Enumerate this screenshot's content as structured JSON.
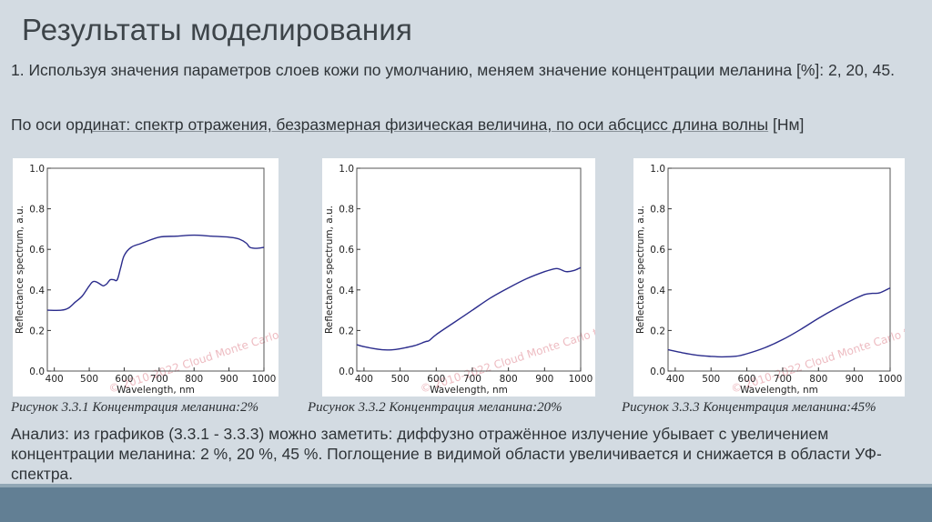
{
  "slide": {
    "title": "Результаты моделирования",
    "paragraph1": "1. Используя значения параметров слоев кожи по умолчанию, меняем значение концентрации меланина [%]: 2, 20, 45.",
    "paragraph2_prefix": "По оси орд",
    "paragraph2_underlined": "инат: спектр отражения, безразмерная физическая величина, по оси абсцисс длина волны",
    "paragraph2_suffix": " [Нм]",
    "analysis": "Анализ: из графиков (3.3.1 - 3.3.3) можно заметить: диффузно отражённое излучение убывает с увеличением концентрации меланина: 2 %, 20 %, 45 %. Поглощение в видимой области увеличивается и снижается в области УФ-спектра.",
    "captions": [
      "Рисунок 3.3.1 Концентрация меланина:2%",
      "Рисунок 3.3.2 Концентрация меланина:20%",
      "Рисунок 3.3.3 Концентрация меланина:45%"
    ],
    "watermark": "© 2010-2022 Cloud Monte Carlo tool",
    "colors": {
      "background": "#d3dbe2",
      "footer_bar": "#627f94",
      "footer_strip": "#91a7b5",
      "line": "#2b2c8c",
      "watermark": "#e8a5ad"
    }
  },
  "chart_data": [
    {
      "type": "line",
      "title": "Рисунок 3.3.1 Концентрация меланина:2%",
      "xlabel": "Wavelength, nm",
      "ylabel": "Reflectance spectrum, a.u.",
      "xlim": [
        380,
        1000
      ],
      "ylim": [
        0.0,
        1.0
      ],
      "xticks": [
        "400",
        "500",
        "600",
        "700",
        "800",
        "900",
        "1000"
      ],
      "yticks": [
        "0.0",
        "0.2",
        "0.4",
        "0.6",
        "0.8",
        "1.0"
      ],
      "grid": false,
      "series": [
        {
          "name": "melanin 2%",
          "x": [
            380,
            420,
            440,
            460,
            480,
            500,
            510,
            520,
            530,
            540,
            550,
            560,
            570,
            580,
            590,
            600,
            620,
            650,
            700,
            750,
            800,
            850,
            900,
            930,
            950,
            960,
            980,
            1000
          ],
          "values": [
            0.3,
            0.3,
            0.31,
            0.34,
            0.37,
            0.42,
            0.44,
            0.44,
            0.43,
            0.42,
            0.43,
            0.45,
            0.45,
            0.45,
            0.51,
            0.57,
            0.61,
            0.63,
            0.66,
            0.665,
            0.67,
            0.665,
            0.66,
            0.65,
            0.63,
            0.61,
            0.605,
            0.61
          ]
        }
      ]
    },
    {
      "type": "line",
      "title": "Рисунок 3.3.2 Концентрация меланина:20%",
      "xlabel": "Wavelength, nm",
      "ylabel": "Reflectance spectrum, a.u.",
      "xlim": [
        380,
        1000
      ],
      "ylim": [
        0.0,
        1.0
      ],
      "xticks": [
        "400",
        "500",
        "600",
        "700",
        "800",
        "900",
        "1000"
      ],
      "yticks": [
        "0.0",
        "0.2",
        "0.4",
        "0.6",
        "0.8",
        "1.0"
      ],
      "grid": false,
      "series": [
        {
          "name": "melanin 20%",
          "x": [
            380,
            400,
            450,
            480,
            500,
            540,
            570,
            580,
            600,
            650,
            700,
            750,
            800,
            850,
            900,
            930,
            945,
            960,
            980,
            1000
          ],
          "values": [
            0.13,
            0.12,
            0.105,
            0.105,
            0.11,
            0.125,
            0.145,
            0.15,
            0.18,
            0.24,
            0.3,
            0.36,
            0.41,
            0.455,
            0.49,
            0.505,
            0.5,
            0.49,
            0.495,
            0.51
          ]
        }
      ]
    },
    {
      "type": "line",
      "title": "Рисунок 3.3.3 Концентрация меланина:45%",
      "xlabel": "Wavelength, nm",
      "ylabel": "Reflectance spectrum, a.u.",
      "xlim": [
        380,
        1000
      ],
      "ylim": [
        0.0,
        1.0
      ],
      "xticks": [
        "400",
        "500",
        "600",
        "700",
        "800",
        "900",
        "1000"
      ],
      "yticks": [
        "0.0",
        "0.2",
        "0.4",
        "0.6",
        "0.8",
        "1.0"
      ],
      "grid": false,
      "series": [
        {
          "name": "melanin 45%",
          "x": [
            380,
            420,
            460,
            500,
            530,
            570,
            600,
            650,
            700,
            750,
            800,
            850,
            900,
            930,
            950,
            970,
            1000
          ],
          "values": [
            0.105,
            0.09,
            0.078,
            0.072,
            0.07,
            0.073,
            0.085,
            0.115,
            0.155,
            0.205,
            0.26,
            0.31,
            0.355,
            0.378,
            0.383,
            0.385,
            0.41
          ]
        }
      ]
    }
  ]
}
